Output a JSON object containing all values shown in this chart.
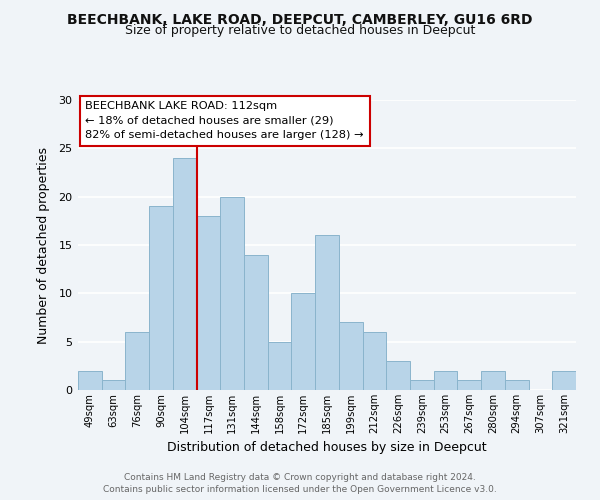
{
  "title": "BEECHBANK, LAKE ROAD, DEEPCUT, CAMBERLEY, GU16 6RD",
  "subtitle": "Size of property relative to detached houses in Deepcut",
  "xlabel": "Distribution of detached houses by size in Deepcut",
  "ylabel": "Number of detached properties",
  "footer_line1": "Contains HM Land Registry data © Crown copyright and database right 2024.",
  "footer_line2": "Contains public sector information licensed under the Open Government Licence v3.0.",
  "bar_labels": [
    "49sqm",
    "63sqm",
    "76sqm",
    "90sqm",
    "104sqm",
    "117sqm",
    "131sqm",
    "144sqm",
    "158sqm",
    "172sqm",
    "185sqm",
    "199sqm",
    "212sqm",
    "226sqm",
    "239sqm",
    "253sqm",
    "267sqm",
    "280sqm",
    "294sqm",
    "307sqm",
    "321sqm"
  ],
  "bar_values": [
    2,
    1,
    6,
    19,
    24,
    18,
    20,
    14,
    5,
    10,
    16,
    7,
    6,
    3,
    1,
    2,
    1,
    2,
    1,
    0,
    2
  ],
  "bar_color": "#b8d4e8",
  "bar_edge_color": "#8ab4cc",
  "vline_x_index": 5,
  "vline_color": "#cc0000",
  "ylim": [
    0,
    30
  ],
  "yticks": [
    0,
    5,
    10,
    15,
    20,
    25,
    30
  ],
  "annotation_title": "BEECHBANK LAKE ROAD: 112sqm",
  "annotation_line1": "← 18% of detached houses are smaller (29)",
  "annotation_line2": "82% of semi-detached houses are larger (128) →",
  "background_color": "#f0f4f8",
  "plot_bg_color": "#f0f4f8",
  "grid_color": "#ffffff",
  "title_fontsize": 10,
  "subtitle_fontsize": 9,
  "footer_color": "#666666"
}
